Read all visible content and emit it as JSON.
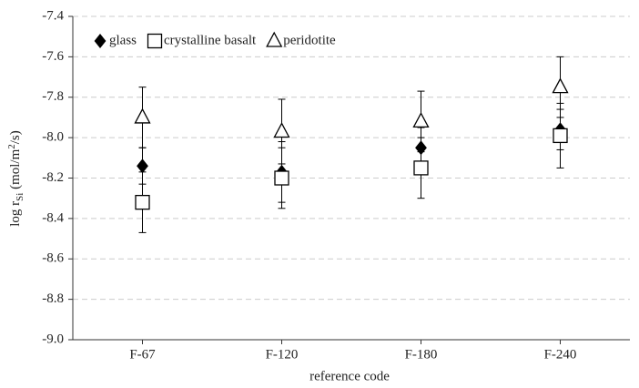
{
  "chart_data": {
    "type": "errorbar",
    "ylabel": {
      "prefix": "log r",
      "sub": "Si",
      "mid": " (mol/m",
      "sup": "2",
      "suffix": "/s)"
    },
    "xlabel": "reference code",
    "categories": [
      "F-67",
      "F-120",
      "F-180",
      "F-240"
    ],
    "ylim": [
      -9,
      -7.4
    ],
    "yticks": [
      {
        "value": -9,
        "label": "-9.0"
      },
      -8.8,
      -8.6,
      -8.4,
      -8.2,
      {
        "value": -8,
        "label": "-8.0"
      },
      -7.8,
      -7.6,
      -7.4
    ],
    "grid": true,
    "legend": "upper left",
    "series": [
      {
        "name": "glass",
        "color": "#000000",
        "marker": "diamond",
        "values": [
          -8.14,
          -8.17,
          -8.05,
          -7.96
        ],
        "errors": [
          0.09,
          0.15,
          0.1,
          0.1
        ]
      },
      {
        "name": "crystalline basalt",
        "color": "#000000",
        "marker": "square",
        "values": [
          -8.32,
          -8.2,
          -8.15,
          -7.99
        ],
        "errors": [
          0.15,
          0.15,
          0.15,
          0.16
        ]
      },
      {
        "name": "peridotite",
        "color": "#000000",
        "marker": "triangle",
        "values": [
          -7.9,
          -7.97,
          -7.92,
          -7.75
        ],
        "errors": [
          0.15,
          0.16,
          0.15,
          0.15
        ]
      }
    ]
  }
}
